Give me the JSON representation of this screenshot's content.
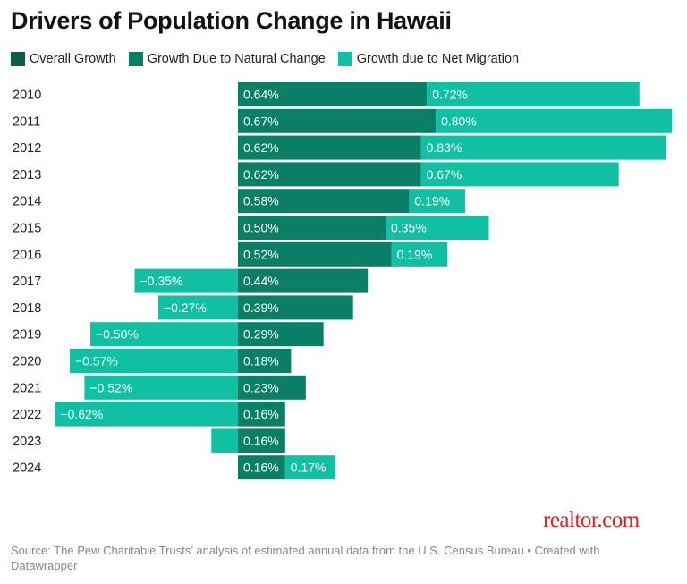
{
  "title": "Drivers of Population Change in Hawaii",
  "legend": [
    {
      "label": "Overall Growth",
      "color": "#0b5e4b"
    },
    {
      "label": "Growth Due to Natural Change",
      "color": "#0a7f65"
    },
    {
      "label": "Growth due to Net Migration",
      "color": "#11c0a2"
    }
  ],
  "logo": "realtor.com",
  "source": "Source: The Pew Charitable Trusts’ analysis of estimated annual data from the U.S. Census Bureau • Created with Datawrapper",
  "chart_data": {
    "type": "bar",
    "orientation": "horizontal",
    "stacked": true,
    "title": "Drivers of Population Change in Hawaii",
    "categories": [
      "2010",
      "2011",
      "2012",
      "2013",
      "2014",
      "2015",
      "2016",
      "2017",
      "2018",
      "2019",
      "2020",
      "2021",
      "2022",
      "2023",
      "2024"
    ],
    "series": [
      {
        "name": "Growth Due to Natural Change",
        "color": "#0a7f65",
        "values": [
          0.64,
          0.67,
          0.62,
          0.62,
          0.58,
          0.5,
          0.52,
          0.44,
          0.39,
          0.29,
          0.18,
          0.23,
          0.16,
          0.16,
          0.16
        ],
        "labels": [
          "0.64%",
          "0.67%",
          "0.62%",
          "0.62%",
          "0.58%",
          "0.50%",
          "0.52%",
          "0.44%",
          "0.39%",
          "0.29%",
          "0.18%",
          "0.23%",
          "0.16%",
          "0.16%",
          "0.16%"
        ]
      },
      {
        "name": "Growth due to Net Migration",
        "color": "#11c0a2",
        "values": [
          0.72,
          0.8,
          0.83,
          0.67,
          0.19,
          0.35,
          0.19,
          -0.35,
          -0.27,
          -0.5,
          -0.57,
          -0.52,
          -0.62,
          -0.09,
          0.17
        ],
        "labels": [
          "0.72%",
          "0.80%",
          "0.83%",
          "0.67%",
          "0.19%",
          "0.35%",
          "0.19%",
          "−0.35%",
          "−0.27%",
          "−0.50%",
          "−0.57%",
          "−0.52%",
          "−0.62%",
          "",
          "0.17%"
        ]
      }
    ],
    "xlim": [
      -0.62,
      1.47
    ],
    "grid": false,
    "legend_position": "top-left"
  }
}
